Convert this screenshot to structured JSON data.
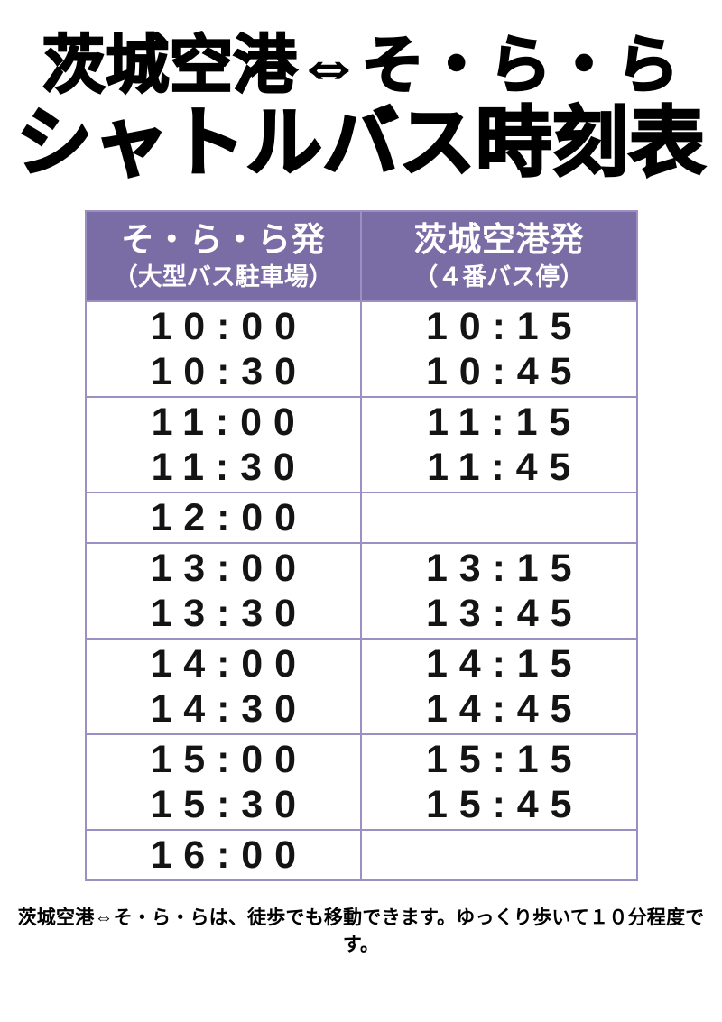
{
  "title": {
    "line1": "茨城空港⇔そ・ら・ら",
    "line2": "シャトルバス時刻表"
  },
  "colors": {
    "header_bg": "#7a6ca5",
    "header_text": "#ffffff",
    "grid_border": "#9c8fc2",
    "time_text": "#141414",
    "title_text": "#000000"
  },
  "timetable": {
    "columns": [
      {
        "title": "そ・ら・ら発",
        "subtitle": "（大型バス駐車場）"
      },
      {
        "title": "茨城空港発",
        "subtitle": "（４番バス停）"
      }
    ],
    "groups": [
      {
        "sorara": [
          "10:00",
          "10:30"
        ],
        "airport": [
          "10:15",
          "10:45"
        ]
      },
      {
        "sorara": [
          "11:00",
          "11:30"
        ],
        "airport": [
          "11:15",
          "11:45"
        ]
      },
      {
        "sorara": [
          "12:00"
        ],
        "airport": []
      },
      {
        "sorara": [
          "13:00",
          "13:30"
        ],
        "airport": [
          "13:15",
          "13:45"
        ]
      },
      {
        "sorara": [
          "14:00",
          "14:30"
        ],
        "airport": [
          "14:15",
          "14:45"
        ]
      },
      {
        "sorara": [
          "15:00",
          "15:30"
        ],
        "airport": [
          "15:15",
          "15:45"
        ]
      },
      {
        "sorara": [
          "16:00"
        ],
        "airport": []
      }
    ]
  },
  "footer": {
    "note": "茨城空港⇔そ・ら・らは、徒歩でも移動できます。ゆっくり歩いて１０分程度です。"
  }
}
